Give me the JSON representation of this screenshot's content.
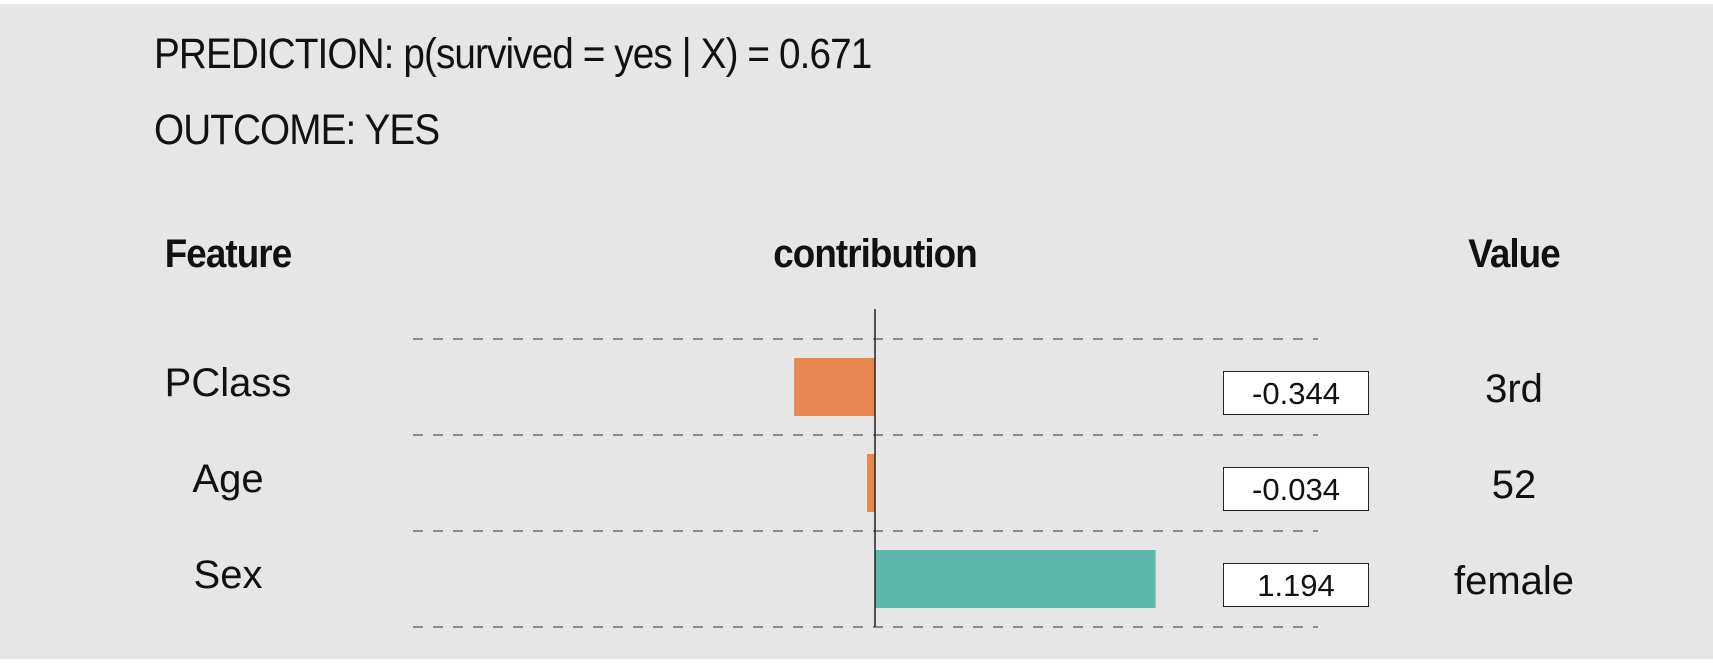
{
  "prediction_text": "PREDICTION: p(survived = yes | X) = 0.671",
  "outcome_text": "OUTCOME: YES",
  "headers": {
    "feature": "Feature",
    "contribution": "contribution",
    "value": "Value"
  },
  "colors": {
    "negative": "#e8874f",
    "positive": "#5cb8a8",
    "background": "#e6e6e6"
  },
  "chart_data": {
    "type": "bar",
    "orientation": "horizontal",
    "categories": [
      "PClass",
      "Age",
      "Sex"
    ],
    "values": [
      -0.344,
      -0.034,
      1.194
    ],
    "value_labels": [
      "-0.344",
      "-0.034",
      "1.194"
    ],
    "feature_values": [
      "3rd",
      "52",
      "female"
    ],
    "xlabel": "contribution",
    "xlim": [
      -1.9,
      1.9
    ],
    "grid": "dashed horizontal separators"
  }
}
